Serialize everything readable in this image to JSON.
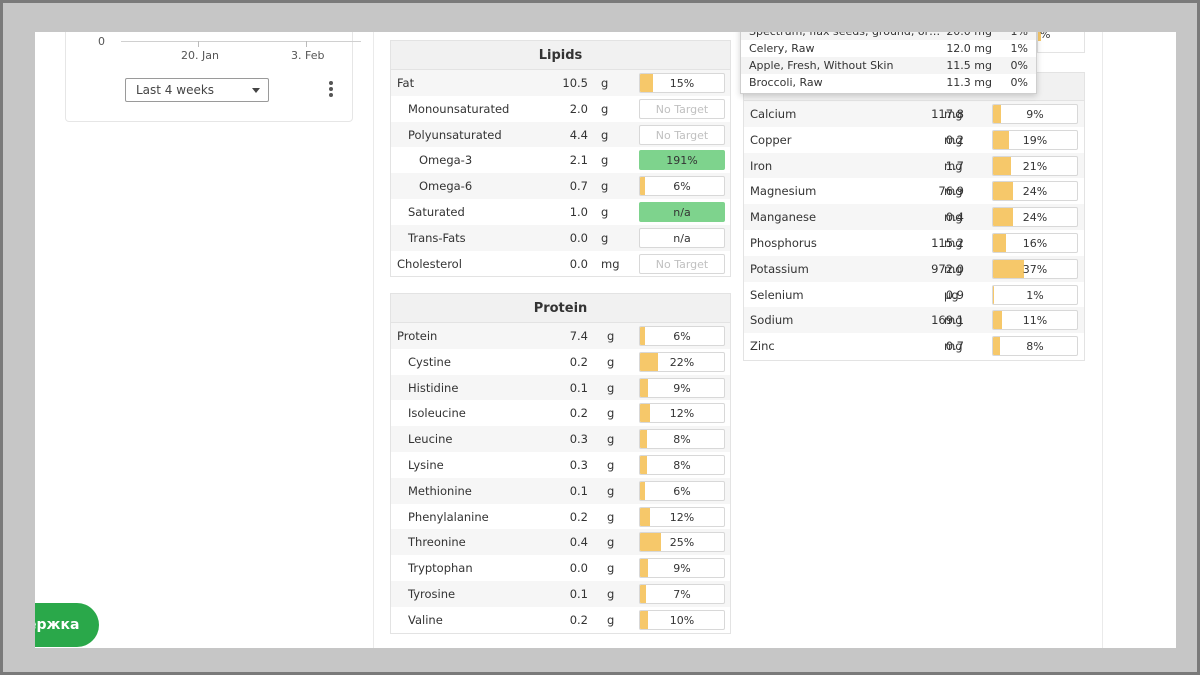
{
  "chart": {
    "y_tick": "0",
    "x_ticks": [
      "20. Jan",
      "3. Feb"
    ]
  },
  "range_select": {
    "value": "Last 4 weeks"
  },
  "lipids": {
    "title": "Lipids",
    "rows": [
      {
        "name": "Fat",
        "amount": "10.5",
        "unit": "g",
        "pct": "15%",
        "fill": 15,
        "indent": 0
      },
      {
        "name": "Monounsaturated",
        "amount": "2.0",
        "unit": "g",
        "pct": "No Target",
        "fill": 0,
        "indent": 1,
        "style": "notarget"
      },
      {
        "name": "Polyunsaturated",
        "amount": "4.4",
        "unit": "g",
        "pct": "No Target",
        "fill": 0,
        "indent": 1,
        "style": "notarget"
      },
      {
        "name": "Omega-3",
        "amount": "2.1",
        "unit": "g",
        "pct": "191%",
        "fill": 0,
        "indent": 2,
        "style": "green"
      },
      {
        "name": "Omega-6",
        "amount": "0.7",
        "unit": "g",
        "pct": "6%",
        "fill": 6,
        "indent": 2
      },
      {
        "name": "Saturated",
        "amount": "1.0",
        "unit": "g",
        "pct": "n/a",
        "fill": 0,
        "indent": 1,
        "style": "green"
      },
      {
        "name": "Trans-Fats",
        "amount": "0.0",
        "unit": "g",
        "pct": "n/a",
        "fill": 0,
        "indent": 1
      },
      {
        "name": "Cholesterol",
        "amount": "0.0",
        "unit": "mg",
        "pct": "No Target",
        "fill": 0,
        "indent": 0,
        "style": "notarget"
      }
    ]
  },
  "protein": {
    "title": "Protein",
    "rows": [
      {
        "name": "Protein",
        "amount": "7.4",
        "unit": "g",
        "pct": "6%",
        "fill": 6,
        "indent": 0
      },
      {
        "name": "Cystine",
        "amount": "0.2",
        "unit": "g",
        "pct": "22%",
        "fill": 22,
        "indent": 1
      },
      {
        "name": "Histidine",
        "amount": "0.1",
        "unit": "g",
        "pct": "9%",
        "fill": 9,
        "indent": 1
      },
      {
        "name": "Isoleucine",
        "amount": "0.2",
        "unit": "g",
        "pct": "12%",
        "fill": 12,
        "indent": 1
      },
      {
        "name": "Leucine",
        "amount": "0.3",
        "unit": "g",
        "pct": "8%",
        "fill": 8,
        "indent": 1
      },
      {
        "name": "Lysine",
        "amount": "0.3",
        "unit": "g",
        "pct": "8%",
        "fill": 8,
        "indent": 1
      },
      {
        "name": "Methionine",
        "amount": "0.1",
        "unit": "g",
        "pct": "6%",
        "fill": 6,
        "indent": 1
      },
      {
        "name": "Phenylalanine",
        "amount": "0.2",
        "unit": "g",
        "pct": "12%",
        "fill": 12,
        "indent": 1
      },
      {
        "name": "Threonine",
        "amount": "0.4",
        "unit": "g",
        "pct": "25%",
        "fill": 25,
        "indent": 1
      },
      {
        "name": "Tryptophan",
        "amount": "0.0",
        "unit": "g",
        "pct": "9%",
        "fill": 9,
        "indent": 1
      },
      {
        "name": "Tyrosine",
        "amount": "0.1",
        "unit": "g",
        "pct": "7%",
        "fill": 7,
        "indent": 1
      },
      {
        "name": "Valine",
        "amount": "0.2",
        "unit": "g",
        "pct": "10%",
        "fill": 10,
        "indent": 1
      }
    ]
  },
  "minerals": {
    "rows": [
      {
        "name": "Calcium",
        "amount": "117.8",
        "unit": "mg",
        "pct": "9%",
        "fill": 9
      },
      {
        "name": "Copper",
        "amount": "0.2",
        "unit": "mg",
        "pct": "19%",
        "fill": 19
      },
      {
        "name": "Iron",
        "amount": "1.7",
        "unit": "mg",
        "pct": "21%",
        "fill": 21
      },
      {
        "name": "Magnesium",
        "amount": "76.9",
        "unit": "mg",
        "pct": "24%",
        "fill": 24
      },
      {
        "name": "Manganese",
        "amount": "0.4",
        "unit": "mg",
        "pct": "24%",
        "fill": 24
      },
      {
        "name": "Phosphorus",
        "amount": "115.2",
        "unit": "mg",
        "pct": "16%",
        "fill": 16
      },
      {
        "name": "Potassium",
        "amount": "972.0",
        "unit": "mg",
        "pct": "37%",
        "fill": 37
      },
      {
        "name": "Selenium",
        "amount": "0.9",
        "unit": "µg",
        "pct": "1%",
        "fill": 1
      },
      {
        "name": "Sodium",
        "amount": "169.1",
        "unit": "mg",
        "pct": "11%",
        "fill": 11
      },
      {
        "name": "Zinc",
        "amount": "0.7",
        "unit": "mg",
        "pct": "8%",
        "fill": 8
      }
    ]
  },
  "popup": {
    "rows": [
      {
        "name": "Spectrum, flax seeds, ground, or…",
        "amount": "20.0 mg",
        "pct": "1%"
      },
      {
        "name": "Celery, Raw",
        "amount": "12.0 mg",
        "pct": "1%"
      },
      {
        "name": "Apple, Fresh, Without Skin",
        "amount": "11.5 mg",
        "pct": "0%"
      },
      {
        "name": "Broccoli, Raw",
        "amount": "11.3 mg",
        "pct": "0%"
      }
    ]
  },
  "support_button": {
    "label": "ержка"
  },
  "colors": {
    "bar_fill": "#f6c86a",
    "bar_green": "#7ed38d",
    "support_green": "#2aa84a"
  }
}
